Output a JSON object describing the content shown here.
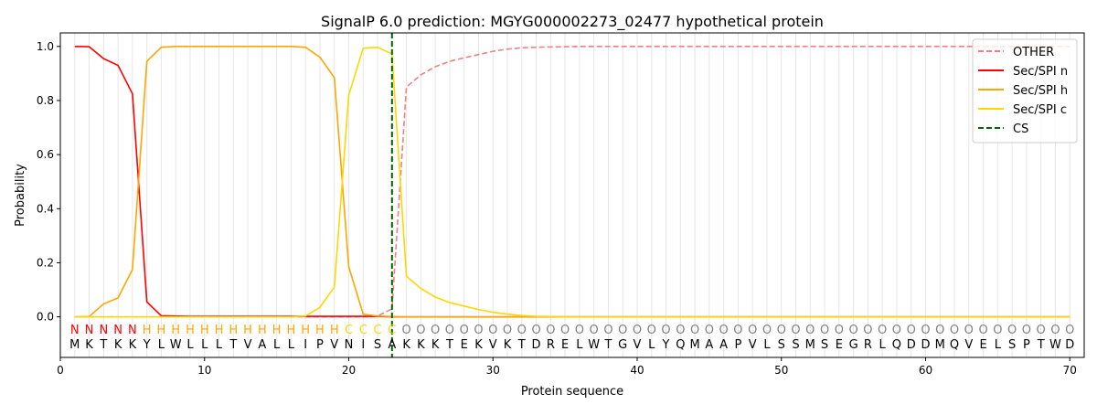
{
  "chart_data": {
    "type": "line",
    "title": "SignalP 6.0 prediction: MGYG000002273_02477 hypothetical protein",
    "xlabel": "Protein sequence",
    "ylabel": "Probability",
    "xlim": [
      0,
      71
    ],
    "ylim": [
      -0.15,
      1.05
    ],
    "xticks": [
      0,
      10,
      20,
      30,
      40,
      50,
      60,
      70
    ],
    "yticks": [
      0.0,
      0.2,
      0.4,
      0.6,
      0.8,
      1.0
    ],
    "legend_position": "top-right",
    "grid": "vertical lines at each residue",
    "sequence": [
      "M",
      "K",
      "T",
      "K",
      "K",
      "Y",
      "L",
      "W",
      "L",
      "L",
      "L",
      "T",
      "V",
      "A",
      "L",
      "L",
      "I",
      "P",
      "V",
      "N",
      "I",
      "S",
      "A",
      "K",
      "K",
      "K",
      "T",
      "E",
      "K",
      "V",
      "K",
      "T",
      "D",
      "R",
      "E",
      "L",
      "W",
      "T",
      "G",
      "V",
      "L",
      "Y",
      "Q",
      "M",
      "A",
      "A",
      "P",
      "V",
      "L",
      "S",
      "S",
      "M",
      "S",
      "E",
      "G",
      "R",
      "L",
      "Q",
      "D",
      "D",
      "M",
      "Q",
      "V",
      "E",
      "L",
      "S",
      "P",
      "T",
      "W",
      "D"
    ],
    "region_labels": [
      "N",
      "N",
      "N",
      "N",
      "N",
      "H",
      "H",
      "H",
      "H",
      "H",
      "H",
      "H",
      "H",
      "H",
      "H",
      "H",
      "H",
      "H",
      "H",
      "C",
      "C",
      "C",
      "C",
      "O",
      "O",
      "O",
      "O",
      "O",
      "O",
      "O",
      "O",
      "O",
      "O",
      "O",
      "O",
      "O",
      "O",
      "O",
      "O",
      "O",
      "O",
      "O",
      "O",
      "O",
      "O",
      "O",
      "O",
      "O",
      "O",
      "O",
      "O",
      "O",
      "O",
      "O",
      "O",
      "O",
      "O",
      "O",
      "O",
      "O",
      "O",
      "O",
      "O",
      "O",
      "O",
      "O",
      "O",
      "O",
      "O",
      "O"
    ],
    "region_colors": {
      "N": "#ff0000",
      "H": "#ffa500",
      "C": "#ffd700",
      "O": "#808080"
    },
    "cleavage_site": 23,
    "series": [
      {
        "name": "OTHER",
        "color": "#f08080",
        "dash": "dashed",
        "values": [
          0,
          0,
          0,
          0,
          0,
          0,
          0,
          0,
          0,
          0,
          0,
          0,
          0,
          0,
          0,
          0,
          0,
          0,
          0,
          0,
          0,
          0.003,
          0.03,
          0.85,
          0.895,
          0.925,
          0.945,
          0.958,
          0.97,
          0.982,
          0.99,
          0.995,
          0.997,
          0.998,
          0.999,
          1,
          1,
          1,
          1,
          1,
          1,
          1,
          1,
          1,
          1,
          1,
          1,
          1,
          1,
          1,
          1,
          1,
          1,
          1,
          1,
          1,
          1,
          1,
          1,
          1,
          1,
          1,
          1,
          1,
          1,
          1,
          1,
          1,
          1,
          1
        ]
      },
      {
        "name": "Sec/SPI n",
        "color": "#ff0000",
        "dash": "solid",
        "values": [
          1.0,
          0.999,
          0.955,
          0.93,
          0.825,
          0.055,
          0.004,
          0.003,
          0.002,
          0.002,
          0.002,
          0.002,
          0.002,
          0.002,
          0.002,
          0.002,
          0.002,
          0.002,
          0.002,
          0.002,
          0.002,
          0.002,
          0,
          0,
          0,
          0,
          0,
          0,
          0,
          0,
          0,
          0,
          0,
          0,
          0,
          0,
          0,
          0,
          0,
          0,
          0,
          0,
          0,
          0,
          0,
          0,
          0,
          0,
          0,
          0,
          0,
          0,
          0,
          0,
          0,
          0,
          0,
          0,
          0,
          0,
          0,
          0,
          0,
          0,
          0,
          0,
          0,
          0,
          0,
          0
        ]
      },
      {
        "name": "Sec/SPI h",
        "color": "#ffa500",
        "dash": "solid",
        "values": [
          0,
          0.001,
          0.048,
          0.07,
          0.175,
          0.945,
          0.997,
          1.0,
          1.0,
          1.0,
          1.0,
          1.0,
          1.0,
          1.0,
          1.0,
          1.0,
          0.997,
          0.96,
          0.885,
          0.185,
          0.01,
          0.003,
          0.001,
          0,
          0,
          0,
          0,
          0,
          0,
          0,
          0,
          0,
          0,
          0,
          0,
          0,
          0,
          0,
          0,
          0,
          0,
          0,
          0,
          0,
          0,
          0,
          0,
          0,
          0,
          0,
          0,
          0,
          0,
          0,
          0,
          0,
          0,
          0,
          0,
          0,
          0,
          0,
          0,
          0,
          0,
          0,
          0,
          0,
          0,
          0
        ]
      },
      {
        "name": "Sec/SPI c",
        "color": "#ffd700",
        "dash": "solid",
        "values": [
          0,
          0,
          0,
          0,
          0,
          0,
          0,
          0,
          0,
          0,
          0,
          0,
          0,
          0,
          0,
          0,
          0.003,
          0.035,
          0.11,
          0.82,
          0.993,
          0.997,
          0.972,
          0.15,
          0.105,
          0.073,
          0.053,
          0.04,
          0.027,
          0.017,
          0.01,
          0.005,
          0.002,
          0.001,
          0,
          0,
          0,
          0,
          0,
          0,
          0,
          0,
          0,
          0,
          0,
          0,
          0,
          0,
          0,
          0,
          0,
          0,
          0,
          0,
          0,
          0,
          0,
          0,
          0,
          0,
          0,
          0,
          0,
          0,
          0,
          0,
          0,
          0,
          0,
          0
        ]
      }
    ],
    "legend_entries": [
      "OTHER",
      "Sec/SPI n",
      "Sec/SPI h",
      "Sec/SPI c",
      "CS"
    ],
    "cs_color": "#006400"
  }
}
